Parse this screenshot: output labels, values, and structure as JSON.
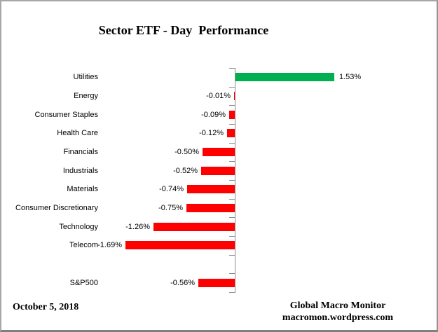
{
  "title": "Sector ETF - Day  Performance",
  "footer": {
    "date": "October 5, 2018",
    "source_line1": "Global Macro Monitor",
    "source_line2": "macromon.wordpress.com"
  },
  "chart_data": {
    "type": "bar",
    "orientation": "horizontal",
    "title": "Sector ETF - Day  Performance",
    "categories": [
      "Utilities",
      "Energy",
      "Consumer Staples",
      "Health Care",
      "Financials",
      "Industrials",
      "Materials",
      "Consumer Discretionary",
      "Technology",
      "Telecom",
      "",
      "S&P500"
    ],
    "values": [
      1.53,
      -0.01,
      -0.09,
      -0.12,
      -0.5,
      -0.52,
      -0.74,
      -0.75,
      -1.26,
      -1.69,
      null,
      -0.56
    ],
    "data_labels": [
      "1.53%",
      "-0.01%",
      "-0.09%",
      "-0.12%",
      "-0.50%",
      "-0.52%",
      "-0.74%",
      "-0.75%",
      "-1.26%",
      "-1.69%",
      "",
      "-0.56%"
    ],
    "xlim": [
      -1.69,
      1.53
    ],
    "grid": false,
    "legend": false,
    "label_position": "outside-end",
    "colors": {
      "positive_bar": "#00B050",
      "negative_bar": "#FF0000",
      "axis": "#8C8C8C",
      "text": "#000000"
    }
  }
}
